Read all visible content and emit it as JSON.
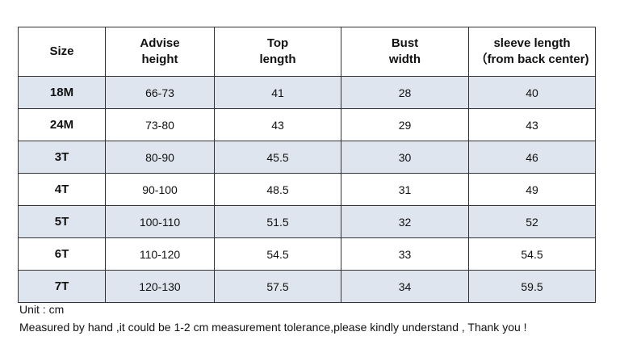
{
  "table": {
    "header": [
      [
        "Size"
      ],
      [
        "Advise",
        "height"
      ],
      [
        "Top",
        "length"
      ],
      [
        "Bust",
        "width"
      ],
      [
        "sleeve length",
        "（from back center)"
      ]
    ],
    "rows": [
      [
        "18M",
        "66-73",
        "41",
        "28",
        "40"
      ],
      [
        "24M",
        "73-80",
        "43",
        "29",
        "43"
      ],
      [
        "3T",
        "80-90",
        "45.5",
        "30",
        "46"
      ],
      [
        "4T",
        "90-100",
        "48.5",
        "31",
        "49"
      ],
      [
        "5T",
        "100-110",
        "51.5",
        "32",
        "52"
      ],
      [
        "6T",
        "110-120",
        "54.5",
        "33",
        "54.5"
      ],
      [
        "7T",
        "120-130",
        "57.5",
        "34",
        "59.5"
      ]
    ]
  },
  "notes": [
    "Unit : cm",
    "Measured by hand ,it could be 1-2 cm measurement tolerance,please kindly understand , Thank you !"
  ]
}
